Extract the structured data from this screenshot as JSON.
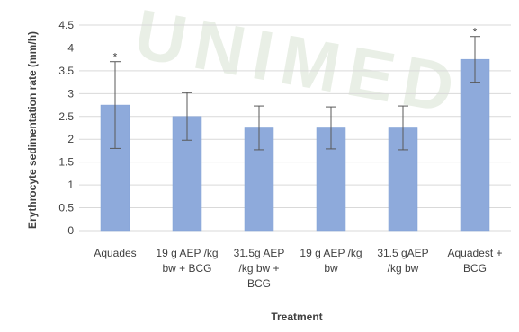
{
  "chart_data": {
    "type": "bar",
    "categories": [
      [
        "Aquades"
      ],
      [
        "19 g AEP /kg",
        "bw + BCG"
      ],
      [
        "31.5g AEP",
        "/kg bw +",
        "BCG"
      ],
      [
        "19 g AEP /kg",
        "bw"
      ],
      [
        "31.5 gAEP",
        "/kg bw"
      ],
      [
        "Aquadest +",
        "BCG"
      ]
    ],
    "values": [
      2.75,
      2.5,
      2.25,
      2.25,
      2.25,
      3.75
    ],
    "error": [
      0.95,
      0.52,
      0.48,
      0.46,
      0.48,
      0.5
    ],
    "annotations": [
      "*",
      "",
      "",
      "",
      "",
      "*"
    ],
    "xlabel": "Treatment",
    "ylabel": "Erythrocyte sedimentation rate (mm/h)",
    "ylim": [
      0,
      4.5
    ],
    "yticks": [
      "0",
      "0.5",
      "1",
      "1.5",
      "2",
      "2.5",
      "3",
      "3.5",
      "4",
      "4.5"
    ],
    "grid": true,
    "legend": "none",
    "bar_color": "#8eaadb",
    "bar_edge_color": "#7f9fd5",
    "grid_color": "#d9d9d9",
    "error_color": "#595959"
  },
  "watermark": "UNIMED"
}
